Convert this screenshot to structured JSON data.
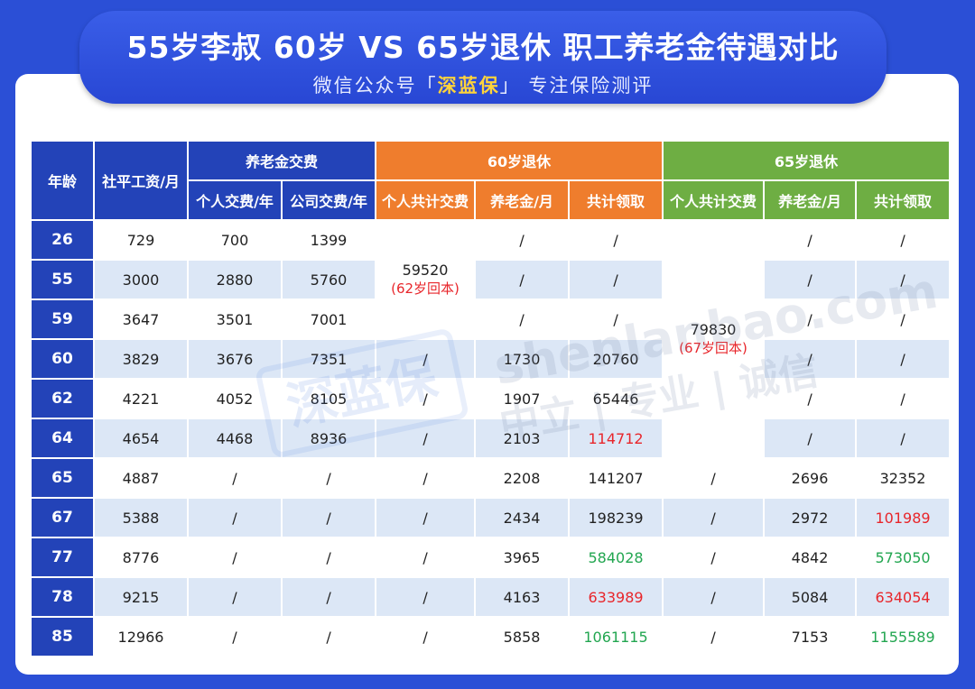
{
  "banner": {
    "title": "55岁李叔 60岁 VS 65岁退休 职工养老金待遇对比",
    "subtitle_prefix": "微信公众号「",
    "subtitle_brand": "深蓝保",
    "subtitle_suffix": "」 专注保险测评"
  },
  "watermark": {
    "logo": "深蓝保",
    "site": "shenlanbao.com",
    "slogan": "中立 | 专业 | 诚信"
  },
  "header": {
    "age": "年龄",
    "salary": "社平工资/月",
    "contribution": "养老金交费",
    "personal": "个人交费/年",
    "company": "公司交费/年",
    "retire60": "60岁退休",
    "retire65": "65岁退休",
    "total_paid": "个人共计交费",
    "pension": "养老金/月",
    "total_received": "共计领取"
  },
  "merged": {
    "r60_total_paid": "59520",
    "r60_note": "(62岁回本)",
    "r65_total_paid": "79830",
    "r65_note": "(67岁回本)"
  },
  "rows": [
    {
      "age": "26",
      "salary": "729",
      "personal": "700",
      "company": "1399",
      "p60_paid": "",
      "p60_pension": "/",
      "p60_total": "/",
      "p65_paid": "",
      "p65_pension": "/",
      "p65_total": "/"
    },
    {
      "age": "55",
      "salary": "3000",
      "personal": "2880",
      "company": "5760",
      "p60_paid": "",
      "p60_pension": "/",
      "p60_total": "/",
      "p65_paid": "",
      "p65_pension": "/",
      "p65_total": "/"
    },
    {
      "age": "59",
      "salary": "3647",
      "personal": "3501",
      "company": "7001",
      "p60_paid": "",
      "p60_pension": "/",
      "p60_total": "/",
      "p65_paid": "",
      "p65_pension": "/",
      "p65_total": "/"
    },
    {
      "age": "60",
      "salary": "3829",
      "personal": "3676",
      "company": "7351",
      "p60_paid": "/",
      "p60_pension": "1730",
      "p60_total": "20760",
      "p65_paid": "",
      "p65_pension": "/",
      "p65_total": "/"
    },
    {
      "age": "62",
      "salary": "4221",
      "personal": "4052",
      "company": "8105",
      "p60_paid": "/",
      "p60_pension": "1907",
      "p60_total": "65446",
      "p65_paid": "",
      "p65_pension": "/",
      "p65_total": "/"
    },
    {
      "age": "64",
      "salary": "4654",
      "personal": "4468",
      "company": "8936",
      "p60_paid": "/",
      "p60_pension": "2103",
      "p60_total": "114712",
      "p65_paid": "",
      "p65_pension": "/",
      "p65_total": "/"
    },
    {
      "age": "65",
      "salary": "4887",
      "personal": "/",
      "company": "/",
      "p60_paid": "/",
      "p60_pension": "2208",
      "p60_total": "141207",
      "p65_paid": "/",
      "p65_pension": "2696",
      "p65_total": "32352"
    },
    {
      "age": "67",
      "salary": "5388",
      "personal": "/",
      "company": "/",
      "p60_paid": "/",
      "p60_pension": "2434",
      "p60_total": "198239",
      "p65_paid": "/",
      "p65_pension": "2972",
      "p65_total": "101989"
    },
    {
      "age": "77",
      "salary": "8776",
      "personal": "/",
      "company": "/",
      "p60_paid": "/",
      "p60_pension": "3965",
      "p60_total": "584028",
      "p65_paid": "/",
      "p65_pension": "4842",
      "p65_total": "573050"
    },
    {
      "age": "78",
      "salary": "9215",
      "personal": "/",
      "company": "/",
      "p60_paid": "/",
      "p60_pension": "4163",
      "p60_total": "633989",
      "p65_paid": "/",
      "p65_pension": "5084",
      "p65_total": "634054"
    },
    {
      "age": "85",
      "salary": "12966",
      "personal": "/",
      "company": "/",
      "p60_paid": "/",
      "p60_pension": "5858",
      "p60_total": "1061115",
      "p65_paid": "/",
      "p65_pension": "7153",
      "p65_total": "1155589"
    }
  ],
  "colors": {
    "background": "#2b4fd6",
    "header_blue": "#2343b8",
    "header_orange": "#ef7d2d",
    "header_green": "#6eae43",
    "row_alt": "#dce7f6",
    "highlight_red": "#e8262b",
    "highlight_green": "#22a650",
    "brand_yellow": "#ffd43b"
  }
}
